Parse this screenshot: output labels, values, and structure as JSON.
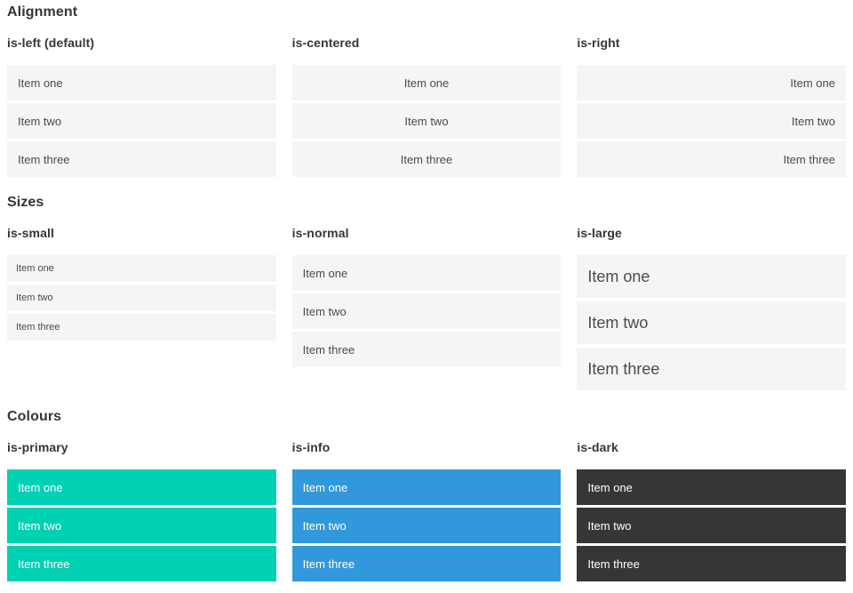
{
  "items": [
    "Item one",
    "Item two",
    "Item three"
  ],
  "sections": [
    {
      "title": "Alignment",
      "columns": [
        {
          "label": "is-left (default)"
        },
        {
          "label": "is-centered"
        },
        {
          "label": "is-right"
        }
      ]
    },
    {
      "title": "Sizes",
      "columns": [
        {
          "label": "is-small"
        },
        {
          "label": "is-normal"
        },
        {
          "label": "is-large"
        }
      ]
    },
    {
      "title": "Colours",
      "columns": [
        {
          "label": "is-primary"
        },
        {
          "label": "is-info"
        },
        {
          "label": "is-dark"
        }
      ]
    }
  ],
  "colors": {
    "heading_text": "#363636",
    "item_bg": "#f5f5f5",
    "item_text": "#4a4a4a",
    "primary": "#00d1b2",
    "info": "#3298dc",
    "dark": "#363636",
    "colored_item_text": "#ffffff"
  }
}
